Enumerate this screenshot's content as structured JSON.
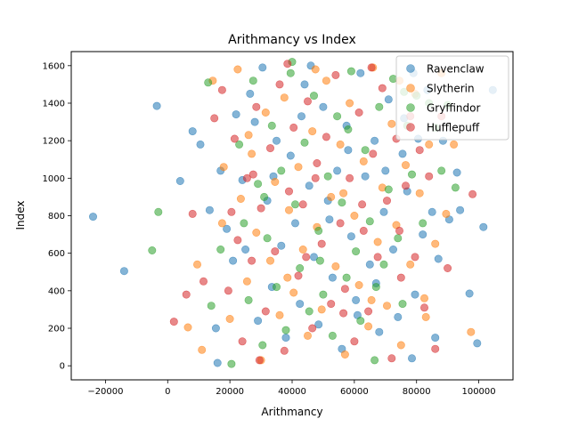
{
  "chart_data": {
    "type": "scatter",
    "title": "Arithmancy vs Index",
    "xlabel": "Arithmancy",
    "ylabel": "Index",
    "xlim": [
      -31000,
      111000
    ],
    "ylim": [
      -75,
      1675
    ],
    "x_ticks": [
      -20000,
      0,
      20000,
      40000,
      60000,
      80000,
      100000
    ],
    "x_tick_labels": [
      "−20000",
      "0",
      "20000",
      "40000",
      "60000",
      "80000",
      "100000"
    ],
    "y_ticks": [
      0,
      200,
      400,
      600,
      800,
      1000,
      1200,
      1400,
      1600
    ],
    "y_tick_labels": [
      "0",
      "200",
      "400",
      "600",
      "800",
      "1000",
      "1200",
      "1400",
      "1600"
    ],
    "grid": false,
    "legend_position": "top-right",
    "marker_alpha": 0.55,
    "series": [
      {
        "name": "Ravenclaw",
        "color": "#1f77b4",
        "points": [
          [
            -24000,
            795
          ],
          [
            -14000,
            505
          ],
          [
            -3500,
            1385
          ],
          [
            4000,
            985
          ],
          [
            8000,
            1250
          ],
          [
            10500,
            1180
          ],
          [
            13500,
            830
          ],
          [
            15500,
            200
          ],
          [
            17000,
            1040
          ],
          [
            19000,
            730
          ],
          [
            21000,
            560
          ],
          [
            22000,
            1340
          ],
          [
            24000,
            990
          ],
          [
            26500,
            1450
          ],
          [
            28000,
            1300
          ],
          [
            30500,
            1590
          ],
          [
            32000,
            880
          ],
          [
            33500,
            420
          ],
          [
            35000,
            1200
          ],
          [
            36500,
            640
          ],
          [
            38000,
            150
          ],
          [
            39500,
            1120
          ],
          [
            41000,
            760
          ],
          [
            42500,
            330
          ],
          [
            44000,
            1500
          ],
          [
            45500,
            960
          ],
          [
            47000,
            580
          ],
          [
            48500,
            220
          ],
          [
            50000,
            1380
          ],
          [
            51500,
            880
          ],
          [
            53000,
            470
          ],
          [
            54500,
            1040
          ],
          [
            56000,
            90
          ],
          [
            57500,
            1280
          ],
          [
            59000,
            690
          ],
          [
            60500,
            350
          ],
          [
            62000,
            1560
          ],
          [
            63500,
            1010
          ],
          [
            65000,
            540
          ],
          [
            66500,
            1200
          ],
          [
            68000,
            180
          ],
          [
            69500,
            820
          ],
          [
            71000,
            1420
          ],
          [
            72500,
            620
          ],
          [
            74000,
            260
          ],
          [
            75500,
            1130
          ],
          [
            77000,
            930
          ],
          [
            78500,
            40
          ],
          [
            79500,
            380
          ],
          [
            80500,
            1210
          ],
          [
            82000,
            700
          ],
          [
            83500,
            1470
          ],
          [
            85000,
            820
          ],
          [
            87000,
            570
          ],
          [
            88500,
            1200
          ],
          [
            90500,
            780
          ],
          [
            93000,
            1030
          ],
          [
            94000,
            830
          ],
          [
            97000,
            385
          ],
          [
            99500,
            120
          ],
          [
            101500,
            740
          ],
          [
            104500,
            1470
          ],
          [
            16000,
            15
          ],
          [
            25000,
            620
          ],
          [
            34000,
            1010
          ],
          [
            43000,
            1330
          ],
          [
            52000,
            780
          ],
          [
            61000,
            270
          ],
          [
            70000,
            1040
          ],
          [
            79000,
            1560
          ],
          [
            86000,
            150
          ],
          [
            29000,
            240
          ],
          [
            46000,
            1600
          ],
          [
            58000,
            1150
          ],
          [
            67000,
            440
          ],
          [
            76000,
            1320
          ]
        ]
      },
      {
        "name": "Slytherin",
        "color": "#ff7f0e",
        "points": [
          [
            6500,
            205
          ],
          [
            9500,
            540
          ],
          [
            11000,
            85
          ],
          [
            14500,
            1520
          ],
          [
            18000,
            1060
          ],
          [
            20000,
            250
          ],
          [
            22500,
            1580
          ],
          [
            23500,
            890
          ],
          [
            25500,
            450
          ],
          [
            27000,
            1130
          ],
          [
            28500,
            710
          ],
          [
            30000,
            30
          ],
          [
            31500,
            1350
          ],
          [
            33000,
            560
          ],
          [
            34500,
            980
          ],
          [
            36000,
            270
          ],
          [
            37500,
            1430
          ],
          [
            39000,
            830
          ],
          [
            40500,
            390
          ],
          [
            42000,
            1060
          ],
          [
            43500,
            620
          ],
          [
            45000,
            160
          ],
          [
            46500,
            1250
          ],
          [
            48000,
            740
          ],
          [
            49500,
            300
          ],
          [
            51000,
            1520
          ],
          [
            52500,
            900
          ],
          [
            54000,
            530
          ],
          [
            55500,
            1180
          ],
          [
            57000,
            60
          ],
          [
            58500,
            1400
          ],
          [
            60000,
            800
          ],
          [
            61500,
            430
          ],
          [
            63000,
            1090
          ],
          [
            64500,
            210
          ],
          [
            66000,
            1590
          ],
          [
            67500,
            660
          ],
          [
            69000,
            950
          ],
          [
            70500,
            320
          ],
          [
            72000,
            1290
          ],
          [
            73500,
            750
          ],
          [
            75000,
            110
          ],
          [
            76500,
            1070
          ],
          [
            78000,
            540
          ],
          [
            79500,
            1450
          ],
          [
            81000,
            920
          ],
          [
            82500,
            360
          ],
          [
            84000,
            1180
          ],
          [
            86000,
            650
          ],
          [
            88000,
            1560
          ],
          [
            89500,
            810
          ],
          [
            92000,
            1180
          ],
          [
            97500,
            180
          ],
          [
            17500,
            760
          ],
          [
            26000,
            1230
          ],
          [
            38500,
            470
          ],
          [
            47500,
            1580
          ],
          [
            56500,
            920
          ],
          [
            65500,
            350
          ],
          [
            74500,
            1520
          ],
          [
            83000,
            260
          ]
        ]
      },
      {
        "name": "Gryffindor",
        "color": "#2ca02c",
        "points": [
          [
            -5000,
            615
          ],
          [
            -3000,
            820
          ],
          [
            13000,
            1510
          ],
          [
            17000,
            620
          ],
          [
            20500,
            10
          ],
          [
            23000,
            1180
          ],
          [
            24500,
            760
          ],
          [
            26000,
            350
          ],
          [
            27500,
            1520
          ],
          [
            29000,
            970
          ],
          [
            30500,
            110
          ],
          [
            32000,
            680
          ],
          [
            33500,
            1280
          ],
          [
            35000,
            420
          ],
          [
            36500,
            1040
          ],
          [
            38000,
            190
          ],
          [
            39500,
            1560
          ],
          [
            41000,
            860
          ],
          [
            42500,
            520
          ],
          [
            44000,
            1190
          ],
          [
            45500,
            290
          ],
          [
            47000,
            1440
          ],
          [
            48500,
            720
          ],
          [
            50000,
            380
          ],
          [
            51500,
            1010
          ],
          [
            53000,
            160
          ],
          [
            54500,
            1330
          ],
          [
            56000,
            870
          ],
          [
            57500,
            470
          ],
          [
            59000,
            1570
          ],
          [
            60500,
            610
          ],
          [
            62000,
            240
          ],
          [
            63500,
            1150
          ],
          [
            65000,
            770
          ],
          [
            66500,
            30
          ],
          [
            68000,
            1380
          ],
          [
            69500,
            540
          ],
          [
            71000,
            940
          ],
          [
            72500,
            1530
          ],
          [
            74000,
            680
          ],
          [
            75500,
            330
          ],
          [
            77000,
            1280
          ],
          [
            78500,
            1020
          ],
          [
            80000,
            1440
          ],
          [
            82000,
            760
          ],
          [
            84000,
            1400
          ],
          [
            86000,
            1270
          ],
          [
            88000,
            1040
          ],
          [
            90000,
            1390
          ],
          [
            92500,
            950
          ],
          [
            14000,
            320
          ],
          [
            31000,
            900
          ],
          [
            40000,
            1620
          ],
          [
            49000,
            560
          ],
          [
            58000,
            1260
          ],
          [
            67000,
            420
          ],
          [
            76000,
            1460
          ]
        ]
      },
      {
        "name": "Hufflepuff",
        "color": "#d62728",
        "points": [
          [
            2000,
            235
          ],
          [
            6000,
            380
          ],
          [
            8000,
            810
          ],
          [
            11500,
            450
          ],
          [
            15000,
            1320
          ],
          [
            17500,
            1470
          ],
          [
            19500,
            400
          ],
          [
            21500,
            1210
          ],
          [
            22500,
            670
          ],
          [
            24000,
            130
          ],
          [
            25500,
            1000
          ],
          [
            27000,
            560
          ],
          [
            28500,
            1380
          ],
          [
            30000,
            840
          ],
          [
            31500,
            290
          ],
          [
            33000,
            1160
          ],
          [
            34500,
            610
          ],
          [
            36000,
            1500
          ],
          [
            37500,
            80
          ],
          [
            39000,
            930
          ],
          [
            40500,
            1270
          ],
          [
            42000,
            480
          ],
          [
            43500,
            860
          ],
          [
            45000,
            1410
          ],
          [
            46500,
            200
          ],
          [
            48000,
            1080
          ],
          [
            49500,
            650
          ],
          [
            51000,
            1220
          ],
          [
            52500,
            330
          ],
          [
            54000,
            1550
          ],
          [
            55500,
            760
          ],
          [
            57000,
            410
          ],
          [
            58500,
            1000
          ],
          [
            60000,
            130
          ],
          [
            61500,
            1350
          ],
          [
            63000,
            720
          ],
          [
            64500,
            290
          ],
          [
            66000,
            1130
          ],
          [
            67500,
            580
          ],
          [
            69000,
            1480
          ],
          [
            70500,
            880
          ],
          [
            72000,
            40
          ],
          [
            73500,
            1210
          ],
          [
            75000,
            470
          ],
          [
            76500,
            960
          ],
          [
            78000,
            1330
          ],
          [
            79500,
            580
          ],
          [
            81000,
            1150
          ],
          [
            82500,
            310
          ],
          [
            84000,
            1010
          ],
          [
            86000,
            90
          ],
          [
            88000,
            1330
          ],
          [
            90000,
            520
          ],
          [
            98000,
            915
          ],
          [
            20500,
            820
          ],
          [
            29500,
            30
          ],
          [
            38500,
            1610
          ],
          [
            47500,
            1000
          ],
          [
            56500,
            280
          ],
          [
            65500,
            1590
          ],
          [
            74500,
            720
          ],
          [
            27500,
            1020
          ],
          [
            44500,
            580
          ],
          [
            62500,
            860
          ]
        ]
      }
    ]
  }
}
